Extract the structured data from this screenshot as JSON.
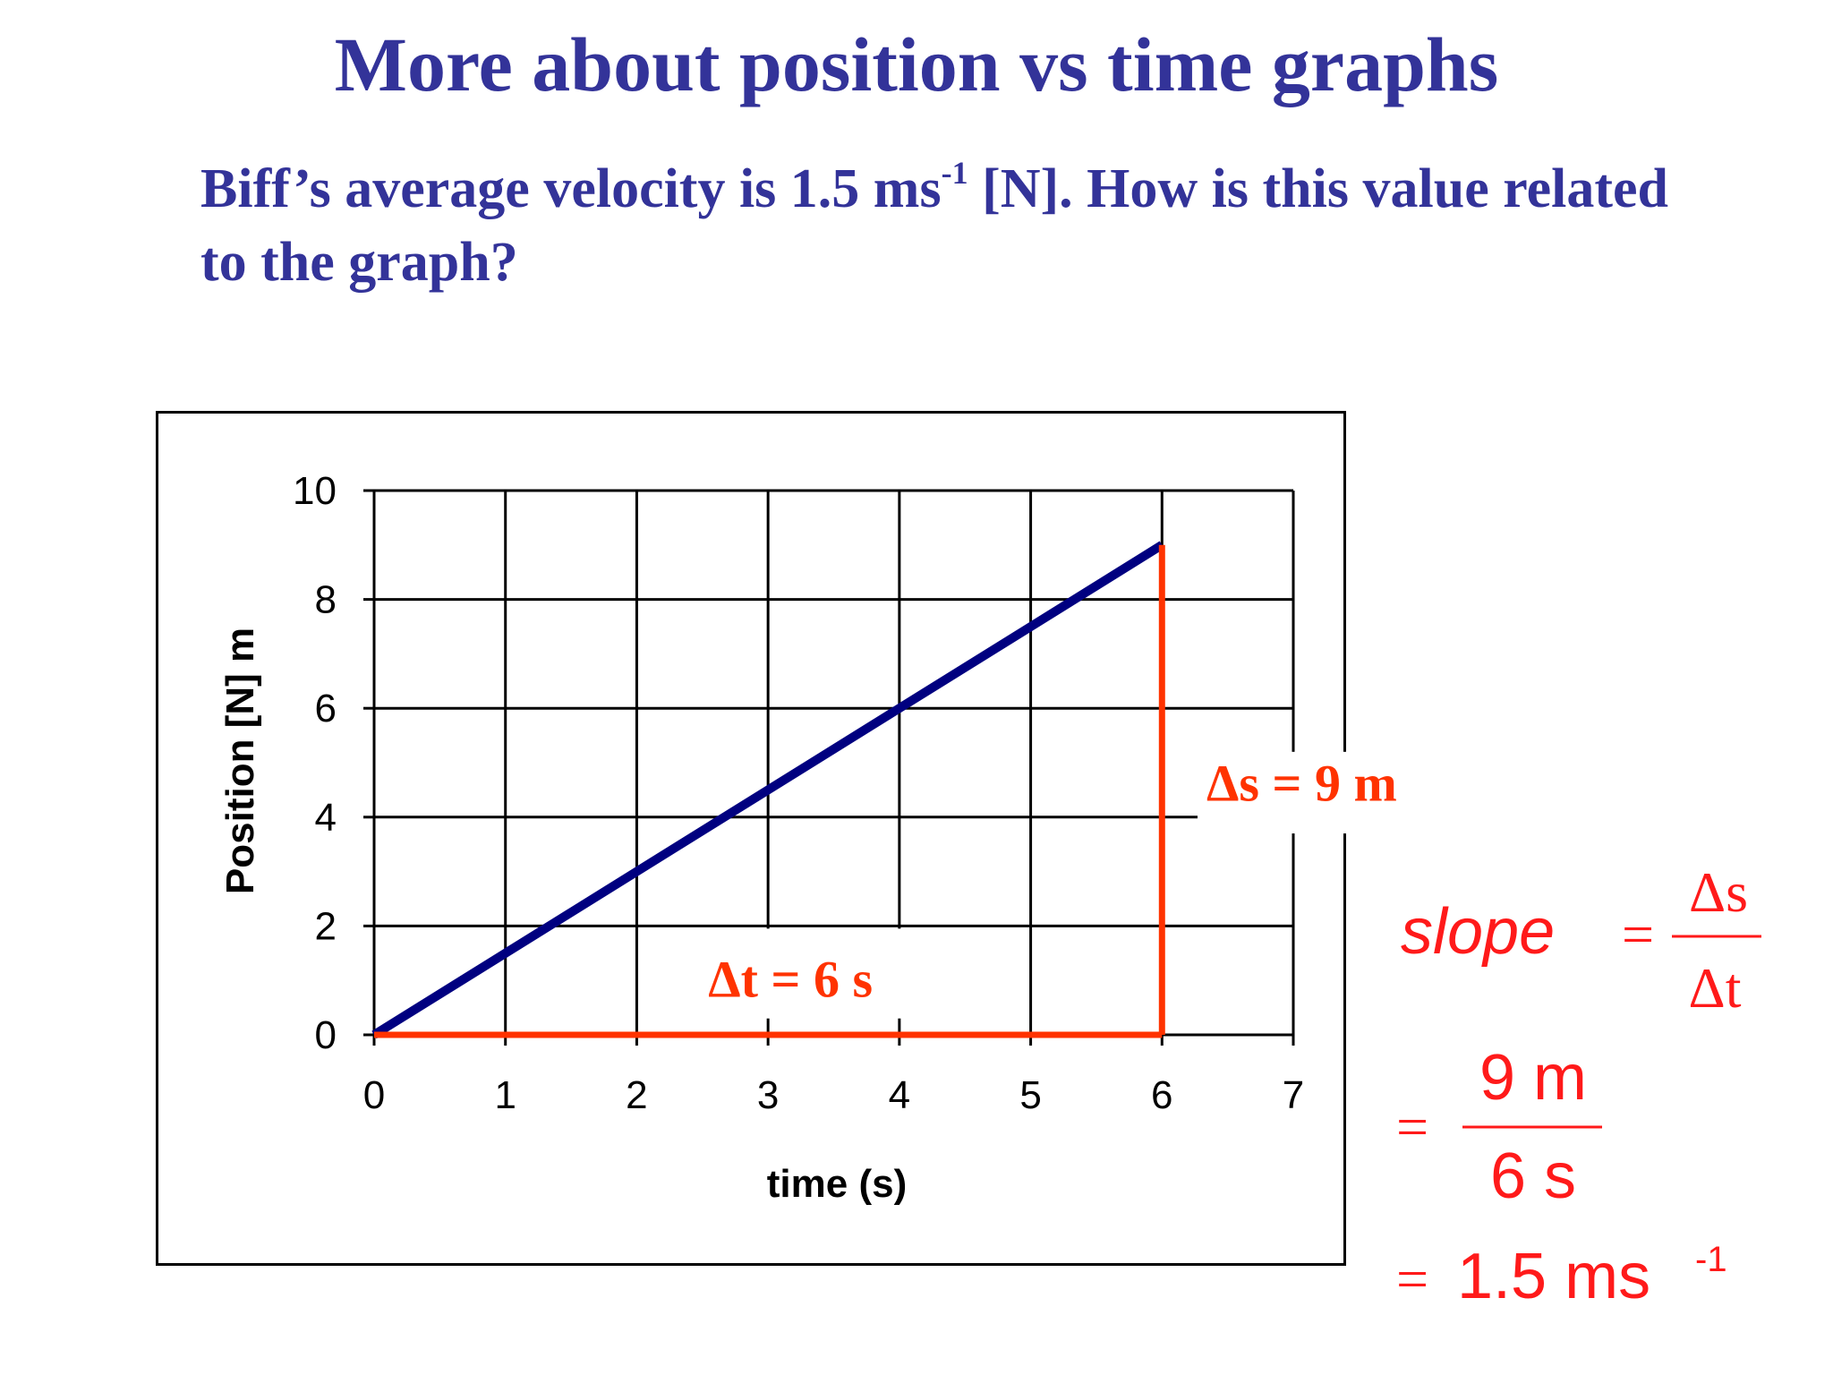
{
  "slide": {
    "title": "More about position vs time graphs",
    "question_part1": "Biff’s average velocity is 1.5 ms",
    "question_sup": "-1",
    "question_part2": " [N]. How is this value related to the graph?"
  },
  "chart_data": {
    "type": "line",
    "xlabel": "time (s)",
    "ylabel": "Position [N] m",
    "xlim": [
      0,
      7
    ],
    "ylim": [
      0,
      10
    ],
    "x_ticks": [
      0,
      1,
      2,
      3,
      4,
      5,
      6,
      7
    ],
    "y_ticks": [
      0,
      2,
      4,
      6,
      8,
      10
    ],
    "grid": true,
    "series": [
      {
        "color": "#000080",
        "x": [
          0,
          6
        ],
        "y": [
          0,
          9
        ]
      }
    ],
    "annotations": {
      "delta_t": {
        "label": "Δt = 6 s",
        "from_x": 0,
        "to_x": 6,
        "y": 0,
        "color": "#ff3300"
      },
      "delta_s": {
        "label": "Δs = 9 m",
        "x": 6,
        "from_y": 0,
        "to_y": 9,
        "color": "#ff3300"
      }
    }
  },
  "equation": {
    "lhs": "slope",
    "equals": "=",
    "num1": "Δs",
    "den1": "Δt",
    "num2": "9 m",
    "den2": "6 s",
    "result": "1.5 ms",
    "result_sup": "-1",
    "color": "#ff1a1a"
  }
}
